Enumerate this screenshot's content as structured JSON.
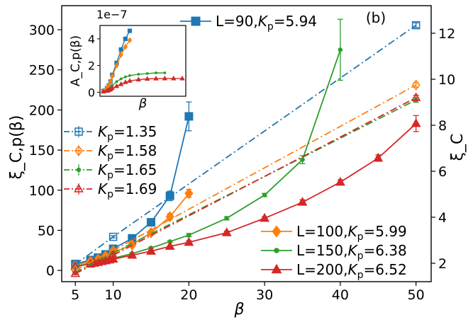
{
  "chart_data": {
    "type": "line",
    "panel_label": "(b)",
    "xlabel": "β",
    "ylabel_left": "ξ_C,p(β)",
    "ylabel_right": "ξ_C",
    "xlim": [
      3.2,
      52
    ],
    "ylim_left": [
      -14,
      330
    ],
    "ylim_right": [
      1.2,
      13.2
    ],
    "x_ticks": [
      5,
      10,
      20,
      30,
      40,
      50
    ],
    "x_tick_labels": [
      "5",
      "10",
      "20",
      "30",
      "40",
      "50"
    ],
    "yleft_ticks": [
      0,
      50,
      100,
      150,
      200,
      250,
      300
    ],
    "yleft_tick_labels": [
      "0",
      "50",
      "100",
      "150",
      "200",
      "250",
      "300"
    ],
    "yright_ticks": [
      2,
      4,
      6,
      8,
      10,
      12
    ],
    "yright_tick_labels": [
      "2",
      "4",
      "6",
      "8",
      "10",
      "12"
    ],
    "series": [
      {
        "name": "L=90,K_p=5.94",
        "label_main": "L=90,",
        "label_sym": "K",
        "label_sub": "p",
        "label_val": "=5.94",
        "color": "#1f77b4",
        "marker": "square",
        "axis": "left",
        "x": [
          5,
          7,
          8,
          9,
          10,
          12.5,
          15,
          17.5,
          20
        ],
        "y": [
          8,
          13,
          16,
          20,
          27,
          40,
          60,
          93,
          192
        ],
        "yerr": [
          1,
          1,
          1,
          2,
          2,
          3,
          4,
          6,
          18
        ]
      },
      {
        "name": "L=100,K_p=5.99",
        "label_main": "L=100,",
        "label_sym": "K",
        "label_sub": "p",
        "label_val": "=5.99",
        "color": "#ff7f0e",
        "marker": "diamond",
        "axis": "left",
        "x": [
          5,
          7,
          8,
          9,
          10,
          12.5,
          15,
          17.5,
          20
        ],
        "y": [
          7,
          11,
          14,
          18,
          22,
          32,
          47,
          67,
          96
        ],
        "yerr": [
          1,
          1,
          1,
          1,
          2,
          2,
          3,
          4,
          5
        ]
      },
      {
        "name": "L=150,K_p=6.38",
        "label_main": "L=150,",
        "label_sym": "K",
        "label_sub": "p",
        "label_val": "=6.38",
        "color": "#2ca02c",
        "marker": "dot",
        "axis": "left",
        "x": [
          5,
          7,
          8,
          9,
          10,
          12.5,
          15,
          17.5,
          20,
          25,
          30,
          35,
          40
        ],
        "y": [
          5,
          9,
          11,
          13,
          15,
          21,
          28,
          36,
          44,
          65,
          94,
          138,
          275
        ],
        "yerr": [
          0.5,
          0.5,
          0.5,
          0.5,
          1,
          1,
          1,
          1,
          2,
          2,
          2,
          5,
          38
        ]
      },
      {
        "name": "L=200,K_p=6.52",
        "label_main": "L=200,",
        "label_sym": "K",
        "label_sub": "p",
        "label_val": "=6.52",
        "color": "#d62728",
        "marker": "triangle",
        "axis": "left",
        "x": [
          5,
          7,
          7.5,
          8,
          8.5,
          9,
          9.5,
          10,
          12.5,
          15,
          17.5,
          20,
          25,
          30,
          35,
          40,
          45,
          50
        ],
        "y": [
          5,
          8,
          9,
          10,
          11,
          12,
          13,
          14,
          19,
          24,
          30,
          35,
          47,
          65,
          85,
          110,
          140,
          183
        ],
        "yerr": [
          0.5,
          0.5,
          0.5,
          0.5,
          0.5,
          0.5,
          0.5,
          1,
          1,
          1,
          1,
          2,
          2,
          2,
          3,
          3,
          4,
          10
        ]
      },
      {
        "name": "K_p=1.35",
        "label_main": "",
        "label_sym": "K",
        "label_sub": "p",
        "label_val": "=1.35",
        "color": "#1f77b4",
        "marker": "square-open",
        "axis": "right",
        "dash": "dashdot",
        "x": [
          5,
          10,
          50
        ],
        "y": [
          1.95,
          3.15,
          12.35
        ],
        "yerr": [
          0.05,
          0.05,
          0.1
        ]
      },
      {
        "name": "K_p=1.58",
        "label_main": "",
        "label_sym": "K",
        "label_sub": "p",
        "label_val": "=1.58",
        "color": "#ff7f0e",
        "marker": "diamond-open",
        "axis": "right",
        "dash": "dashdot",
        "x": [
          5,
          10,
          50
        ],
        "y": [
          1.7,
          2.55,
          9.75
        ],
        "yerr": [
          0.05,
          0.05,
          0.1
        ]
      },
      {
        "name": "K_p=1.65",
        "label_main": "",
        "label_sym": "K",
        "label_sub": "p",
        "label_val": "=1.65",
        "color": "#2ca02c",
        "marker": "dot",
        "axis": "right",
        "dash": "dashdot",
        "x": [
          5,
          10,
          50
        ],
        "y": [
          1.6,
          2.45,
          9.1
        ],
        "yerr": [
          0.05,
          0.05,
          0.1
        ]
      },
      {
        "name": "K_p=1.69",
        "label_main": "",
        "label_sym": "K",
        "label_sub": "p",
        "label_val": "=1.69",
        "color": "#d62728",
        "marker": "triangle-open",
        "axis": "right",
        "dash": "dashdot",
        "x": [
          5,
          10,
          50
        ],
        "y": [
          1.55,
          2.35,
          9.2
        ],
        "yerr": [
          0.05,
          0.05,
          0.1
        ]
      }
    ],
    "inset": {
      "scale_label": "1e−7",
      "xlabel": "β",
      "ylabel": "A_C,p(β)",
      "ylim": [
        -0.3,
        5
      ],
      "xlim": [
        3,
        52
      ],
      "y_ticks": [
        0,
        2,
        4
      ],
      "y_tick_labels": [
        "0",
        "2",
        "4"
      ],
      "series": [
        {
          "color": "#1f77b4",
          "marker": "square",
          "x": [
            5,
            7,
            8,
            9,
            10,
            12.5,
            15,
            17.5,
            20
          ],
          "y": [
            0.1,
            0.3,
            0.5,
            0.8,
            1.3,
            2.2,
            3.2,
            4.0,
            4.6
          ]
        },
        {
          "color": "#ff7f0e",
          "marker": "diamond",
          "x": [
            5,
            7,
            8,
            9,
            10,
            12.5,
            15,
            17.5,
            20
          ],
          "y": [
            0.1,
            0.3,
            0.5,
            0.8,
            1.2,
            2.0,
            2.8,
            3.4,
            3.9
          ]
        },
        {
          "color": "#2ca02c",
          "marker": "dot",
          "x": [
            5,
            7,
            8,
            9,
            10,
            12.5,
            15,
            17.5,
            20,
            25,
            30,
            35,
            40
          ],
          "y": [
            0.05,
            0.15,
            0.25,
            0.35,
            0.5,
            0.8,
            1.0,
            1.15,
            1.25,
            1.35,
            1.4,
            1.45,
            1.45
          ]
        },
        {
          "color": "#d62728",
          "marker": "triangle",
          "x": [
            5,
            7,
            8,
            9,
            10,
            12.5,
            15,
            17.5,
            20,
            25,
            30,
            35,
            40,
            45,
            50
          ],
          "y": [
            0.05,
            0.1,
            0.15,
            0.2,
            0.3,
            0.45,
            0.6,
            0.75,
            0.85,
            0.95,
            1.0,
            1.02,
            1.03,
            1.03,
            1.03
          ]
        }
      ]
    }
  }
}
